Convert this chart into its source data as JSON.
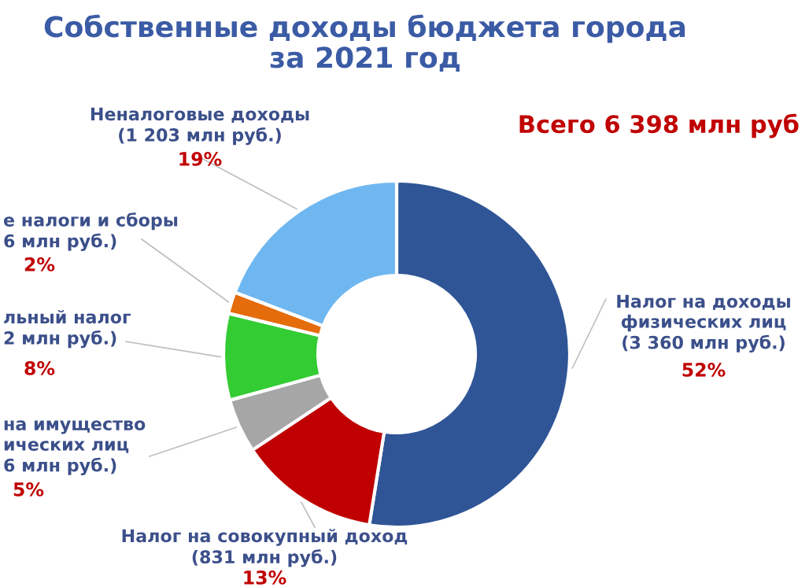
{
  "chart_data": {
    "type": "donut",
    "title": "Собственные доходы бюджета города\nза 2021 год",
    "categories": [
      "Налог на доходы\nфизических лиц\n(3 360 млн руб.)",
      "Налог на совокупный доход\n(831 млн руб.)",
      "на имущество\nических лиц\n6 млн руб.)",
      "льный налог\n2 млн руб.)",
      "е налоги и сборы\n6 млн руб.)",
      "Неналоговые доходы\n(1 203 млн руб.)"
    ],
    "values": [
      52,
      13,
      5,
      8,
      2,
      19
    ],
    "value_labels": [
      "52%",
      "13%",
      "5%",
      "8%",
      "2%",
      "19%"
    ],
    "colors": [
      "#2f5597",
      "#c00000",
      "#a6a6a6",
      "#33cc33",
      "#e46c0a",
      "#6fb7f0"
    ],
    "annotations": [
      "Всего 6 398 млн руб"
    ],
    "legend": false
  }
}
